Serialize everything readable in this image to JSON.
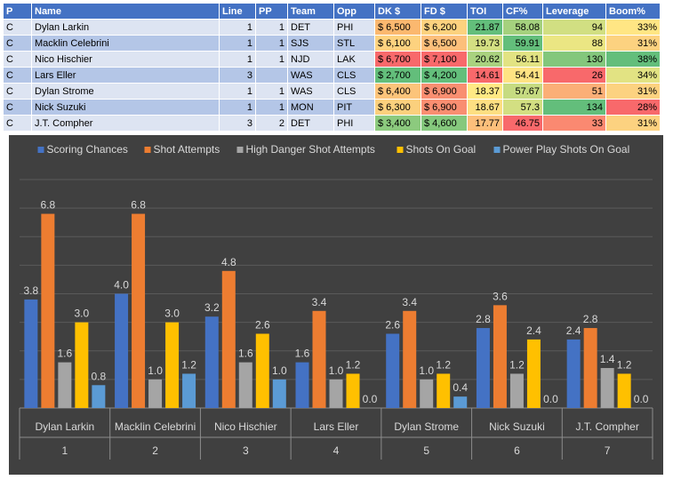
{
  "table": {
    "headers": [
      "P",
      "Name",
      "Line",
      "PP",
      "Team",
      "Opp",
      "DK $",
      "FD $",
      "TOI",
      "CF%",
      "Leverage",
      "Boom%"
    ],
    "rows": [
      {
        "P": "C",
        "Name": "Dylan Larkin",
        "Line": "1",
        "PP": "1",
        "Team": "DET",
        "Opp": "PHI",
        "DK": "$ 6,500",
        "FD": "$ 6,200",
        "TOI": "21.87",
        "CF": "58.08",
        "Leverage": "94",
        "Boom": "33%"
      },
      {
        "P": "C",
        "Name": "Macklin Celebrini",
        "Line": "1",
        "PP": "1",
        "Team": "SJS",
        "Opp": "STL",
        "DK": "$ 6,100",
        "FD": "$ 6,500",
        "TOI": "19.73",
        "CF": "59.91",
        "Leverage": "88",
        "Boom": "31%"
      },
      {
        "P": "C",
        "Name": "Nico Hischier",
        "Line": "1",
        "PP": "1",
        "Team": "NJD",
        "Opp": "LAK",
        "DK": "$ 6,700",
        "FD": "$ 7,100",
        "TOI": "20.62",
        "CF": "56.11",
        "Leverage": "130",
        "Boom": "38%"
      },
      {
        "P": "C",
        "Name": "Lars Eller",
        "Line": "3",
        "PP": "",
        "Team": "WAS",
        "Opp": "CLS",
        "DK": "$ 2,700",
        "FD": "$ 4,200",
        "TOI": "14.61",
        "CF": "54.41",
        "Leverage": "26",
        "Boom": "34%"
      },
      {
        "P": "C",
        "Name": "Dylan Strome",
        "Line": "1",
        "PP": "1",
        "Team": "WAS",
        "Opp": "CLS",
        "DK": "$ 6,400",
        "FD": "$ 6,900",
        "TOI": "18.37",
        "CF": "57.67",
        "Leverage": "51",
        "Boom": "31%"
      },
      {
        "P": "C",
        "Name": "Nick Suzuki",
        "Line": "1",
        "PP": "1",
        "Team": "MON",
        "Opp": "PIT",
        "DK": "$ 6,300",
        "FD": "$ 6,900",
        "TOI": "18.67",
        "CF": "57.3",
        "Leverage": "134",
        "Boom": "28%"
      },
      {
        "P": "C",
        "Name": "J.T. Compher",
        "Line": "3",
        "PP": "2",
        "Team": "DET",
        "Opp": "PHI",
        "DK": "$ 3,400",
        "FD": "$ 4,600",
        "TOI": "17.77",
        "CF": "46.75",
        "Leverage": "33",
        "Boom": "31%"
      }
    ],
    "cell_colors": {
      "DK": [
        "#fbb86f",
        "#fdd27f",
        "#f8696b",
        "#63be7b",
        "#fcc47a",
        "#fbd07d",
        "#8cca7e"
      ],
      "FD": [
        "#fcd27f",
        "#fcbf7b",
        "#f8696b",
        "#63be7b",
        "#f98e71",
        "#f98e71",
        "#85c87d"
      ],
      "TOI": [
        "#63be7b",
        "#d3df82",
        "#a9d27f",
        "#f8696b",
        "#ffe984",
        "#fddf82",
        "#fcbf7b"
      ],
      "CF": [
        "#a5d17e",
        "#63be7b",
        "#e2e383",
        "#ffe383",
        "#c6db81",
        "#d3df82",
        "#f8696b"
      ],
      "Leverage": [
        "#d1df82",
        "#ebe683",
        "#83c77c",
        "#f8696b",
        "#fbaf77",
        "#63be7b",
        "#fa8971"
      ],
      "Boom": [
        "#ffe684",
        "#fcd280",
        "#63be7b",
        "#e2e383",
        "#fcd280",
        "#f8696b",
        "#fcd280"
      ]
    }
  },
  "chart_data": {
    "type": "bar",
    "categories": [
      "Dylan Larkin",
      "Macklin Celebrini",
      "Nico Hischier",
      "Lars Eller",
      "Dylan Strome",
      "Nick Suzuki",
      "J.T. Compher"
    ],
    "category_numbers": [
      "1",
      "2",
      "3",
      "4",
      "5",
      "6",
      "7"
    ],
    "series": [
      {
        "name": "Scoring Chances",
        "color": "#4472c4",
        "values": [
          3.8,
          4.0,
          3.2,
          1.6,
          2.6,
          2.8,
          2.4
        ]
      },
      {
        "name": "Shot Attempts",
        "color": "#ed7d31",
        "values": [
          6.8,
          6.8,
          4.8,
          3.4,
          3.4,
          3.6,
          2.8
        ]
      },
      {
        "name": "High Danger Shot Attempts",
        "color": "#a5a5a5",
        "values": [
          1.6,
          1.0,
          1.6,
          1.0,
          1.0,
          1.2,
          1.4
        ]
      },
      {
        "name": "Shots On Goal",
        "color": "#ffc000",
        "values": [
          3.0,
          3.0,
          2.6,
          1.2,
          1.2,
          2.4,
          1.2
        ]
      },
      {
        "name": "Power Play Shots On Goal",
        "color": "#5b9bd5",
        "values": [
          0.8,
          1.2,
          1.0,
          0.0,
          0.4,
          0.0,
          0.0
        ]
      }
    ],
    "ylim": [
      0,
      8
    ],
    "grid": true,
    "legend": "top",
    "background": "#404040",
    "gridline_color": "#5a5a5a",
    "axis_text_color": "#d9d9d9",
    "label_color": "#d9d9d9"
  }
}
